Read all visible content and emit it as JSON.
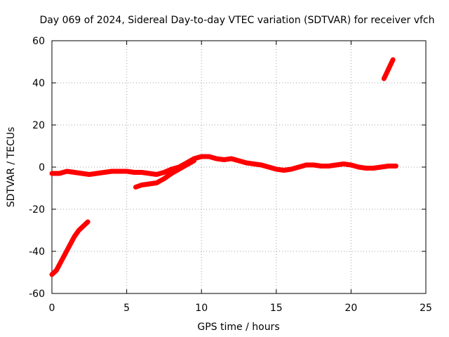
{
  "chart_data": {
    "type": "line",
    "title": "Day 069 of 2024, Sidereal Day-to-day VTEC variation (SDTVAR) for receiver vfch",
    "xlabel": "GPS time / hours",
    "ylabel": "SDTVAR / TECUs",
    "xlim": [
      0,
      25
    ],
    "ylim": [
      -60,
      60
    ],
    "xticks": [
      0,
      5,
      10,
      15,
      20,
      25
    ],
    "yticks": [
      -60,
      -40,
      -20,
      0,
      20,
      40,
      60
    ],
    "grid": true,
    "series_color": "#ff0000",
    "series": [
      {
        "name": "segment-1",
        "x": [
          0.0,
          0.3,
          0.6,
          0.9,
          1.2,
          1.5,
          1.8,
          2.1,
          2.4
        ],
        "y": [
          -51,
          -49,
          -45,
          -41,
          -37,
          -33,
          -30,
          -28,
          -26
        ]
      },
      {
        "name": "segment-2",
        "x": [
          0.0,
          0.5,
          1.0,
          1.5,
          2.0,
          2.5,
          3.0,
          3.5,
          4.0,
          4.5,
          5.0,
          5.5,
          6.0,
          6.5,
          7.0,
          7.5,
          8.0,
          8.5,
          9.0,
          9.5,
          10.0,
          10.5,
          11.0,
          11.5,
          12.0,
          12.5,
          13.0,
          13.5,
          14.0,
          14.5,
          15.0,
          15.5,
          16.0,
          16.5,
          17.0,
          17.5,
          18.0,
          18.5,
          19.0,
          19.5,
          20.0,
          20.5,
          21.0,
          21.5,
          22.0,
          22.5,
          23.0
        ],
        "y": [
          -3,
          -3,
          -2,
          -2.5,
          -3,
          -3.5,
          -3,
          -2.5,
          -2,
          -2,
          -2,
          -2.5,
          -2.5,
          -3,
          -3.5,
          -2.5,
          -1,
          0,
          2,
          4,
          5,
          5,
          4,
          3.5,
          4,
          3,
          2,
          1.5,
          1,
          0,
          -1,
          -1.5,
          -1,
          0,
          1,
          1,
          0.5,
          0.5,
          1,
          1.5,
          1,
          0,
          -0.5,
          -0.5,
          0,
          0.5,
          0.5
        ]
      },
      {
        "name": "segment-3",
        "x": [
          5.6,
          6.0,
          6.5,
          7.0,
          7.5,
          8.0,
          8.5,
          9.0,
          9.5
        ],
        "y": [
          -9.5,
          -8.5,
          -8,
          -7.5,
          -5.5,
          -3,
          -1,
          1,
          3
        ]
      },
      {
        "name": "segment-4",
        "x": [
          22.2,
          22.4,
          22.6,
          22.8
        ],
        "y": [
          42,
          45,
          48,
          51
        ]
      }
    ]
  }
}
